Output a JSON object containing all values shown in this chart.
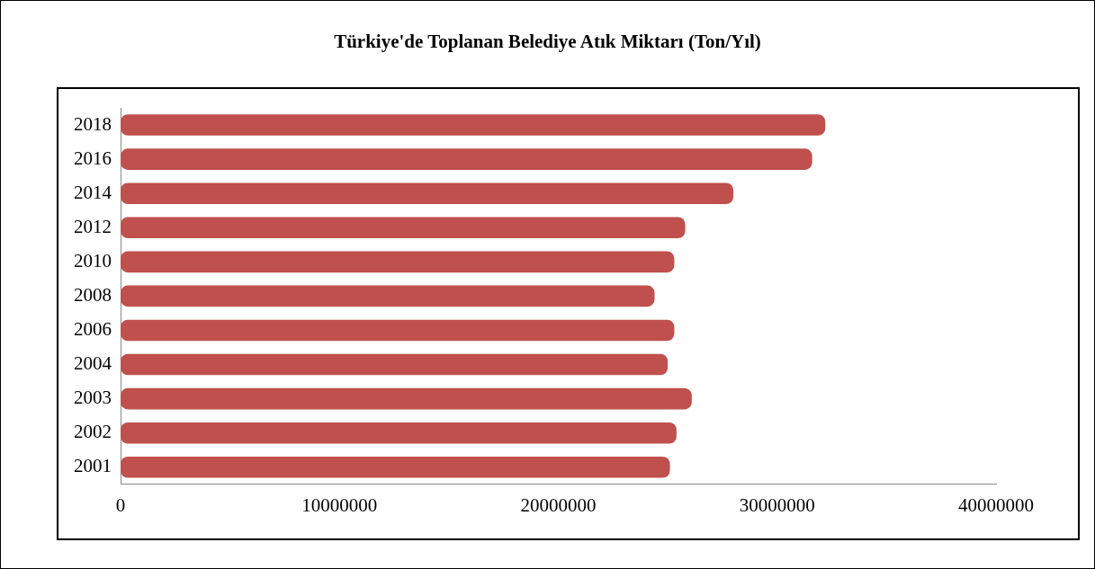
{
  "chart_data": {
    "type": "bar",
    "orientation": "horizontal",
    "title": "Türkiye'de Toplanan Belediye Atık Miktarı (Ton/Yıl)",
    "categories": [
      "2018",
      "2016",
      "2014",
      "2012",
      "2010",
      "2008",
      "2006",
      "2004",
      "2003",
      "2002",
      "2001"
    ],
    "values": [
      32200000,
      31600000,
      28000000,
      25800000,
      25300000,
      24400000,
      25300000,
      25000000,
      26100000,
      25400000,
      25100000
    ],
    "color": "#c0504d",
    "xlim": [
      0,
      40000000
    ],
    "xticks": [
      0,
      10000000,
      20000000,
      30000000,
      40000000
    ],
    "grid": false,
    "legend": false
  }
}
